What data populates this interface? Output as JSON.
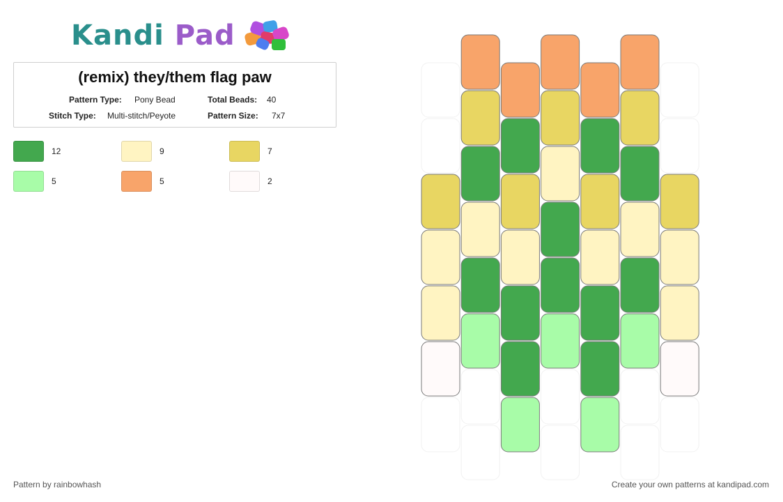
{
  "brand": {
    "name_part1": "Kandi",
    "name_part2": "Pad",
    "color_primary": "#2a8f8c",
    "color_secondary": "#9b5cc9"
  },
  "pattern": {
    "title": "(remix) they/them flag paw",
    "labels": {
      "pattern_type": "Pattern Type:",
      "total_beads": "Total Beads:",
      "stitch_type": "Stitch Type:",
      "pattern_size": "Pattern Size:"
    },
    "values": {
      "pattern_type": "Pony Bead",
      "total_beads": "40",
      "stitch_type": "Multi-stitch/Peyote",
      "pattern_size": "7x7"
    }
  },
  "legend": [
    {
      "color": "#43a84e",
      "count": "12"
    },
    {
      "color": "#fff4c2",
      "count": "9"
    },
    {
      "color": "#e8d662",
      "count": "7"
    },
    {
      "color": "#a8fca8",
      "count": "5"
    },
    {
      "color": "#f8a46a",
      "count": "5"
    },
    {
      "color": "#fffafa",
      "count": "2"
    }
  ],
  "grid": {
    "columns": 7,
    "column_offsets": [
      1,
      0,
      1,
      0,
      1,
      0,
      1
    ],
    "cells": [
      [
        "empty",
        "empty",
        "yellow",
        "cream",
        "cream",
        "white",
        "empty",
        "empty"
      ],
      [
        "orange",
        "yellow",
        "green",
        "cream",
        "green",
        "lightgreen",
        "empty",
        "empty"
      ],
      [
        "orange",
        "green",
        "yellow",
        "cream",
        "green",
        "green",
        "lightgreen",
        "empty"
      ],
      [
        "orange",
        "yellow",
        "cream",
        "green",
        "green",
        "lightgreen",
        "empty",
        "empty"
      ],
      [
        "orange",
        "green",
        "yellow",
        "cream",
        "green",
        "green",
        "lightgreen",
        "empty"
      ],
      [
        "orange",
        "yellow",
        "green",
        "cream",
        "green",
        "lightgreen",
        "empty",
        "empty"
      ],
      [
        "empty",
        "empty",
        "yellow",
        "cream",
        "cream",
        "white",
        "empty",
        "empty"
      ]
    ],
    "palette": {
      "green": "#43a84e",
      "cream": "#fff4c2",
      "yellow": "#e8d662",
      "lightgreen": "#a8fca8",
      "orange": "#f8a46a",
      "white": "#fffafa"
    }
  },
  "footer": {
    "credit": "Pattern by rainbowhash",
    "cta": "Create your own patterns at kandipad.com"
  }
}
